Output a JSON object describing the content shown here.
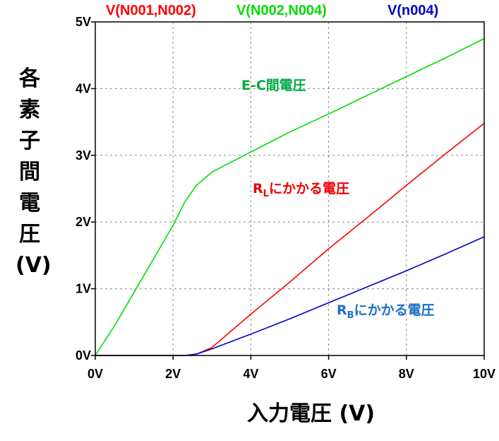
{
  "chart_data": {
    "type": "line",
    "title": "",
    "xlabel": "入力電圧 (V)",
    "ylabel_chars": [
      "各",
      "素",
      "子",
      "間",
      "電",
      "圧",
      "(V)"
    ],
    "xlim": [
      0,
      10
    ],
    "ylim": [
      0,
      5
    ],
    "x_ticks": [
      0,
      2,
      4,
      6,
      8,
      10
    ],
    "x_tick_labels": [
      "0V",
      "2V",
      "4V",
      "6V",
      "8V",
      "10V"
    ],
    "y_ticks": [
      0,
      1,
      2,
      3,
      4,
      5
    ],
    "y_tick_labels": [
      "0V",
      "1V",
      "2V",
      "3V",
      "4V",
      "5V"
    ],
    "grid": true,
    "legend_position": "top",
    "series": [
      {
        "name": "V(N001,N002)",
        "color": "#ff0000",
        "x": [
          0,
          2.3,
          2.6,
          3.0,
          4.0,
          5.0,
          6.0,
          7.0,
          8.0,
          9.0,
          10.0
        ],
        "y": [
          0,
          0,
          0.02,
          0.12,
          0.62,
          1.1,
          1.6,
          2.07,
          2.55,
          3.02,
          3.48
        ]
      },
      {
        "name": "V(N002,N004)",
        "color": "#00dd00",
        "x": [
          0,
          0.5,
          1.0,
          1.5,
          2.0,
          2.3,
          2.6,
          3.0,
          4.0,
          5.0,
          6.0,
          7.0,
          8.0,
          9.0,
          10.0
        ],
        "y": [
          0,
          0.45,
          0.95,
          1.45,
          1.95,
          2.3,
          2.55,
          2.75,
          3.05,
          3.35,
          3.62,
          3.9,
          4.18,
          4.46,
          4.75
        ]
      },
      {
        "name": "V(n004)",
        "color": "#0000cc",
        "x": [
          0,
          2.3,
          2.6,
          3.0,
          4.0,
          5.0,
          6.0,
          7.0,
          8.0,
          9.0,
          10.0
        ],
        "y": [
          0,
          0,
          0.02,
          0.1,
          0.32,
          0.55,
          0.79,
          1.03,
          1.27,
          1.52,
          1.78
        ]
      }
    ],
    "annotations": [
      {
        "main": "E-C間電圧",
        "sub": "",
        "rest": "",
        "color": "#00aa44"
      },
      {
        "main": "R",
        "sub": "L",
        "rest": "にかかる電圧",
        "color": "#ee0000"
      },
      {
        "main": "R",
        "sub": "B",
        "rest": "にかかる電圧",
        "color": "#1f6fc4"
      }
    ]
  }
}
